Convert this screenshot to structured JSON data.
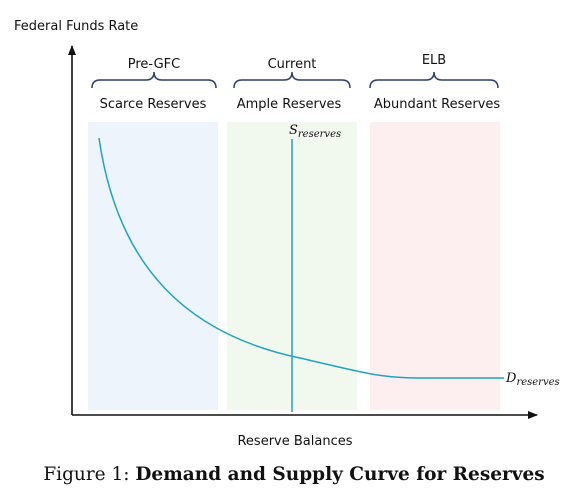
{
  "y_axis_label": "Federal Funds Rate",
  "x_axis_label": "Reserve Balances",
  "regimes": [
    {
      "period": "Pre-GFC",
      "label": "Scarce Reserves",
      "color": "#eef4fb"
    },
    {
      "period": "Current",
      "label": "Ample Reserves",
      "color": "#f1f8ee"
    },
    {
      "period": "ELB",
      "label": "Abundant Reserves",
      "color": "#fdeef0"
    }
  ],
  "supply_label": {
    "base": "S",
    "subscript": "reserves"
  },
  "demand_label": {
    "base": "D",
    "subscript": "reserves"
  },
  "curve_color": "#1fa3c4",
  "caption": {
    "prefix": "Figure 1:",
    "title": "Demand and Supply Curve for Reserves"
  }
}
